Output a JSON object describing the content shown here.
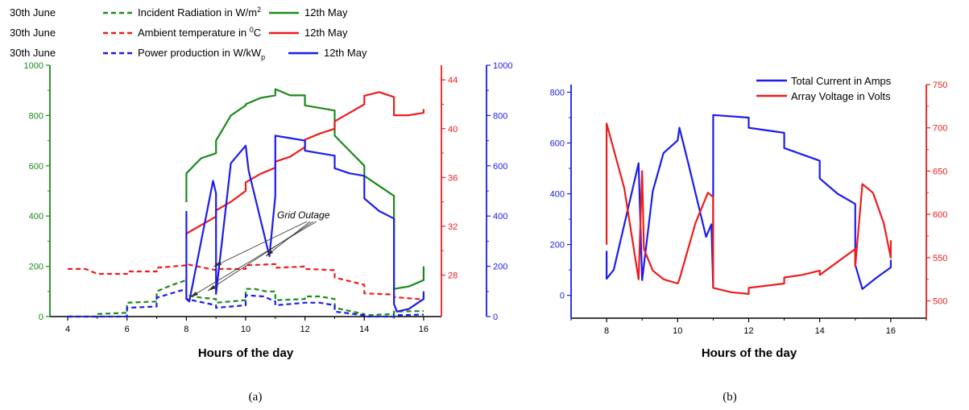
{
  "figure": {
    "panel_a_label": "(a)",
    "panel_b_label": "(b)"
  },
  "chart_data": [
    {
      "type": "line",
      "panel": "a",
      "xlabel": "Hours of the day",
      "xlim": [
        3.4,
        16.6
      ],
      "xticks": [
        4,
        6,
        8,
        10,
        12,
        14,
        16
      ],
      "axes": {
        "left": {
          "ylim": [
            0,
            1000
          ],
          "ticks": [
            0,
            200,
            400,
            600,
            800,
            1000
          ],
          "color": "#1a8a1a"
        },
        "right1": {
          "ylim": [
            24.6,
            45.2
          ],
          "ticks": [
            28,
            32,
            36,
            40,
            44
          ],
          "color": "#ee1c1c"
        },
        "right2": {
          "ylim": [
            0,
            1000
          ],
          "ticks": [
            0,
            200,
            400,
            600,
            800,
            1000
          ],
          "color": "#1c1cee"
        }
      },
      "legend": [
        {
          "left_label": "30th June",
          "label": "Incident Radiation in W/m2",
          "right_label": "12th May",
          "color": "#1a8a1a"
        },
        {
          "left_label": "30th June",
          "label": "Ambient temperature in 0C",
          "right_label": "12th May",
          "color": "#ee1c1c"
        },
        {
          "left_label": "30th June",
          "label": "Power production in W/kWp",
          "right_label": "12th May",
          "color": "#1c1cee"
        }
      ],
      "annotation": "Grid Outage",
      "series": [
        {
          "name": "Incident Radiation — 30th June",
          "axis": "left",
          "style": "dashed",
          "color": "#1a8a1a",
          "x": [
            4,
            5,
            5,
            6,
            6,
            7,
            7,
            7.5,
            8,
            8,
            8.5,
            9,
            9,
            10,
            10,
            10.3,
            10.7,
            11,
            11,
            12,
            12,
            12.5,
            13,
            13,
            14,
            14,
            15,
            15,
            16
          ],
          "y": [
            0,
            0,
            10,
            15,
            55,
            60,
            100,
            125,
            145,
            85,
            75,
            70,
            55,
            65,
            110,
            110,
            100,
            100,
            65,
            70,
            80,
            80,
            70,
            35,
            10,
            5,
            10,
            20,
            22
          ]
        },
        {
          "name": "Ambient temperature — 30th June",
          "axis": "right1",
          "style": "dashed",
          "color": "#ee1c1c",
          "x": [
            4,
            4.6,
            5,
            6,
            6,
            7,
            7,
            8,
            8,
            9,
            9,
            10,
            10,
            11,
            11,
            12,
            12,
            13,
            13,
            14,
            14,
            15,
            15,
            16
          ],
          "y": [
            28.5,
            28.5,
            28.1,
            28.1,
            28.3,
            28.3,
            28.6,
            28.8,
            28.9,
            28.4,
            28.5,
            28.5,
            28.8,
            28.9,
            28.6,
            28.7,
            28.5,
            28.4,
            27.8,
            27.2,
            26.5,
            26.4,
            26.2,
            26.0
          ]
        },
        {
          "name": "Power production — 30th June",
          "axis": "right2",
          "style": "dashed",
          "color": "#1c1cee",
          "x": [
            4,
            5,
            6,
            6,
            7,
            7,
            8,
            8,
            9,
            9,
            10,
            10,
            10.6,
            11,
            11,
            12,
            12.5,
            13,
            13,
            14,
            14,
            15,
            15,
            16
          ],
          "y": [
            0,
            0,
            0,
            35,
            40,
            75,
            110,
            70,
            45,
            35,
            45,
            85,
            80,
            60,
            45,
            55,
            55,
            45,
            20,
            5,
            0,
            0,
            5,
            8
          ]
        },
        {
          "name": "Incident Radiation — 12th May",
          "axis": "left",
          "style": "solid",
          "color": "#1a8a1a",
          "x": [
            8,
            8,
            8.5,
            9,
            9,
            9.5,
            10,
            10,
            10.5,
            11,
            11,
            11.5,
            12,
            12,
            13,
            13,
            13.5,
            14,
            14,
            14.5,
            15,
            15,
            15.5,
            16,
            16
          ],
          "y": [
            455,
            570,
            630,
            650,
            700,
            800,
            840,
            845,
            870,
            880,
            905,
            880,
            880,
            840,
            820,
            720,
            660,
            600,
            560,
            520,
            480,
            110,
            120,
            145,
            200
          ]
        },
        {
          "name": "Ambient temperature — 12th May",
          "axis": "right1",
          "style": "solid",
          "color": "#ee1c1c",
          "x": [
            8,
            8,
            8.5,
            9,
            9,
            9.5,
            10,
            10,
            10.5,
            11,
            11,
            11.5,
            12,
            12,
            12.5,
            13,
            13,
            13.5,
            14,
            14,
            14.5,
            15,
            15,
            15.5,
            16,
            16
          ],
          "y": [
            31.0,
            31.4,
            32.1,
            32.8,
            33.3,
            34.0,
            34.9,
            35.6,
            36.3,
            36.8,
            37.3,
            37.7,
            38.5,
            39.1,
            39.6,
            40.0,
            40.6,
            41.3,
            42.0,
            42.7,
            43.0,
            42.6,
            41.1,
            41.1,
            41.3,
            41.6
          ]
        },
        {
          "name": "Power production — 12th May",
          "axis": "right2",
          "style": "solid",
          "color": "#1c1cee",
          "x": [
            8,
            8,
            8.1,
            8.9,
            9,
            9,
            9.5,
            10,
            10.1,
            10.8,
            11,
            11,
            11.5,
            12,
            12,
            12.5,
            13,
            13,
            13.5,
            14,
            14,
            14.5,
            15,
            15,
            15.1,
            15.5,
            16,
            16
          ],
          "y": [
            420,
            70,
            60,
            540,
            490,
            90,
            610,
            680,
            580,
            240,
            480,
            720,
            710,
            700,
            660,
            650,
            640,
            590,
            570,
            560,
            470,
            420,
            390,
            50,
            20,
            30,
            70,
            100
          ]
        }
      ]
    },
    {
      "type": "line",
      "panel": "b",
      "xlabel": "Hours of the day",
      "xlim": [
        7,
        17
      ],
      "xticks": [
        8,
        10,
        12,
        14,
        16
      ],
      "axes": {
        "left": {
          "ylim": [
            -90,
            830
          ],
          "ticks": [
            0,
            200,
            400,
            600,
            800
          ],
          "color": "#1c1cee"
        },
        "right": {
          "ylim": [
            480,
            750
          ],
          "ticks": [
            500,
            550,
            600,
            650,
            700,
            750
          ],
          "color": "#ee1c1c"
        }
      },
      "legend": [
        {
          "label": "Total Current in Amps",
          "color": "#1c1cee"
        },
        {
          "label": "Array Voltage in Volts",
          "color": "#ee1c1c"
        }
      ],
      "series": [
        {
          "name": "Total Current in Amps",
          "axis": "left",
          "style": "solid",
          "color": "#1c1cee",
          "x": [
            8,
            8,
            8.2,
            8.9,
            9.0,
            9.3,
            9.6,
            10.0,
            10.05,
            10.3,
            10.8,
            10.95,
            11,
            11,
            12,
            12,
            13,
            13,
            13.5,
            14,
            14,
            14.5,
            15,
            15,
            15.2,
            15.6,
            16,
            16
          ],
          "y": [
            175,
            65,
            100,
            520,
            60,
            410,
            560,
            610,
            660,
            520,
            230,
            280,
            30,
            710,
            700,
            660,
            640,
            580,
            555,
            530,
            460,
            400,
            360,
            120,
            25,
            70,
            110,
            140
          ]
        },
        {
          "name": "Array Voltage in Volts",
          "axis": "right",
          "style": "solid",
          "color": "#ee1c1c",
          "x": [
            8,
            8,
            8.5,
            8.9,
            9.0,
            9.05,
            9.3,
            9.6,
            10,
            10.05,
            10.5,
            10.85,
            11,
            11,
            11.5,
            12,
            12,
            13,
            13,
            13.5,
            14,
            14,
            14.5,
            15,
            15,
            15.2,
            15.5,
            15.8,
            16,
            16
          ],
          "y": [
            565,
            705,
            630,
            525,
            650,
            560,
            535,
            525,
            520,
            525,
            590,
            625,
            620,
            515,
            510,
            508,
            515,
            520,
            527,
            530,
            535,
            530,
            545,
            560,
            540,
            635,
            625,
            590,
            550,
            570
          ]
        }
      ]
    }
  ]
}
